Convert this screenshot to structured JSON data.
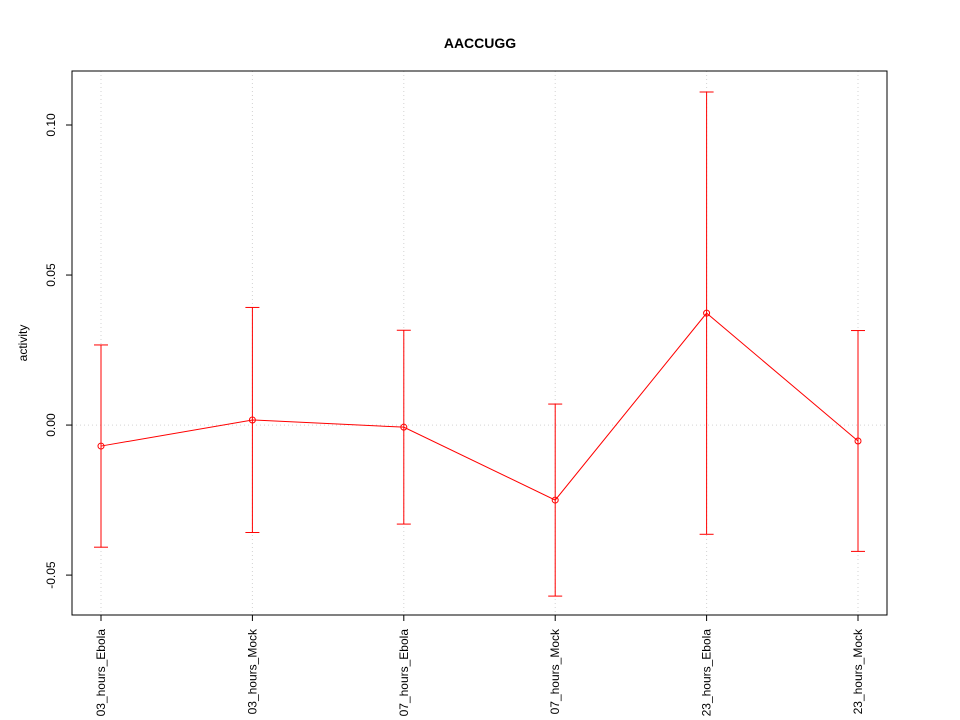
{
  "chart_data": {
    "type": "line",
    "title": "AACCUGG",
    "y_label": "activity",
    "categories": [
      "03_hours_Ebola",
      "03_hours_Mock",
      "07_hours_Ebola",
      "07_hours_Mock",
      "23_hours_Ebola",
      "23_hours_Mock"
    ],
    "series": [
      {
        "color": "#ff0000",
        "values": [
          -0.007,
          0.0017,
          -0.0007,
          -0.025,
          0.0373,
          -0.0053
        ],
        "errors": [
          0.0337,
          0.0375,
          0.0323,
          0.032,
          0.0737,
          0.0368
        ]
      }
    ],
    "ylim": [
      -0.0633,
      0.118
    ],
    "yticks": [
      {
        "value": -0.05,
        "label": "-0.05"
      },
      {
        "value": 0,
        "label": "0.00"
      },
      {
        "value": 0.05,
        "label": "0.05"
      },
      {
        "value": 0.1,
        "label": "0.10"
      }
    ],
    "reference_line": 0,
    "grid": true
  }
}
